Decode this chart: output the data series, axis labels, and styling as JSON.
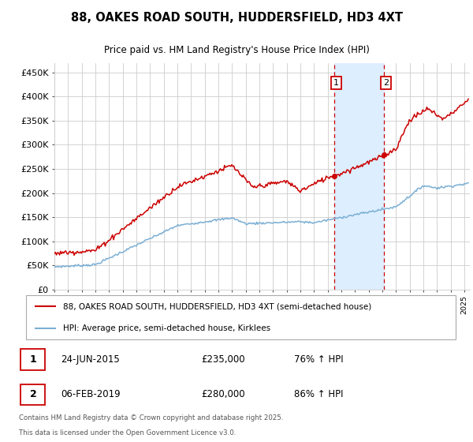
{
  "title": "88, OAKES ROAD SOUTH, HUDDERSFIELD, HD3 4XT",
  "subtitle": "Price paid vs. HM Land Registry's House Price Index (HPI)",
  "ylabel_ticks": [
    "£0",
    "£50K",
    "£100K",
    "£150K",
    "£200K",
    "£250K",
    "£300K",
    "£350K",
    "£400K",
    "£450K"
  ],
  "ytick_values": [
    0,
    50000,
    100000,
    150000,
    200000,
    250000,
    300000,
    350000,
    400000,
    450000
  ],
  "ylim": [
    0,
    470000
  ],
  "xlim_start": 1995.0,
  "xlim_end": 2025.4,
  "legend_line1": "88, OAKES ROAD SOUTH, HUDDERSFIELD, HD3 4XT (semi-detached house)",
  "legend_line2": "HPI: Average price, semi-detached house, Kirklees",
  "sale1_date": "24-JUN-2015",
  "sale1_price": "£235,000",
  "sale1_hpi": "76% ↑ HPI",
  "sale1_label": "1",
  "sale1_year": 2015.48,
  "sale1_value": 235000,
  "sale2_date": "06-FEB-2019",
  "sale2_price": "£280,000",
  "sale2_hpi": "86% ↑ HPI",
  "sale2_label": "2",
  "sale2_year": 2019.1,
  "sale2_value": 280000,
  "footnote1": "Contains HM Land Registry data © Crown copyright and database right 2025.",
  "footnote2": "This data is licensed under the Open Government Licence v3.0.",
  "red_color": "#cc0000",
  "blue_color": "#7bafd4",
  "highlight_color": "#ddeeff",
  "grid_color": "#cccccc",
  "background_color": "#ffffff"
}
